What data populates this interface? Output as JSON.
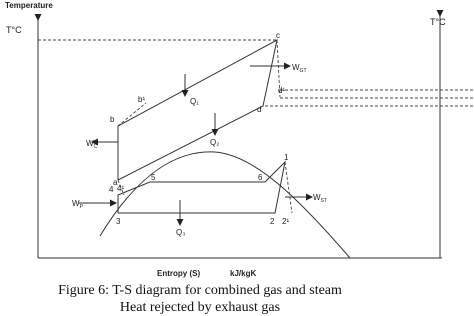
{
  "axes": {
    "y_title": "Temperature",
    "y_unit_left": "T°C",
    "y_unit_right": "T°C",
    "x_title": "Entropy (S)",
    "x_unit": "kJ/kgK"
  },
  "points": [
    "a",
    "b",
    "b¹",
    "c",
    "d",
    "d¹",
    "1",
    "2",
    "2¹",
    "3",
    "4",
    "4¹",
    "5",
    "6"
  ],
  "heat": [
    "Q₁",
    "Q₂",
    "Q₃"
  ],
  "work": [
    {
      "main": "W",
      "sub": "C"
    },
    {
      "main": "W",
      "sub": "GT"
    },
    {
      "main": "W",
      "sub": "P"
    },
    {
      "main": "W",
      "sub": "ST"
    }
  ],
  "caption": [
    "Figure 6: T-S diagram  for combined gas and steam",
    "Heat rejected  by exhaust gas"
  ]
}
